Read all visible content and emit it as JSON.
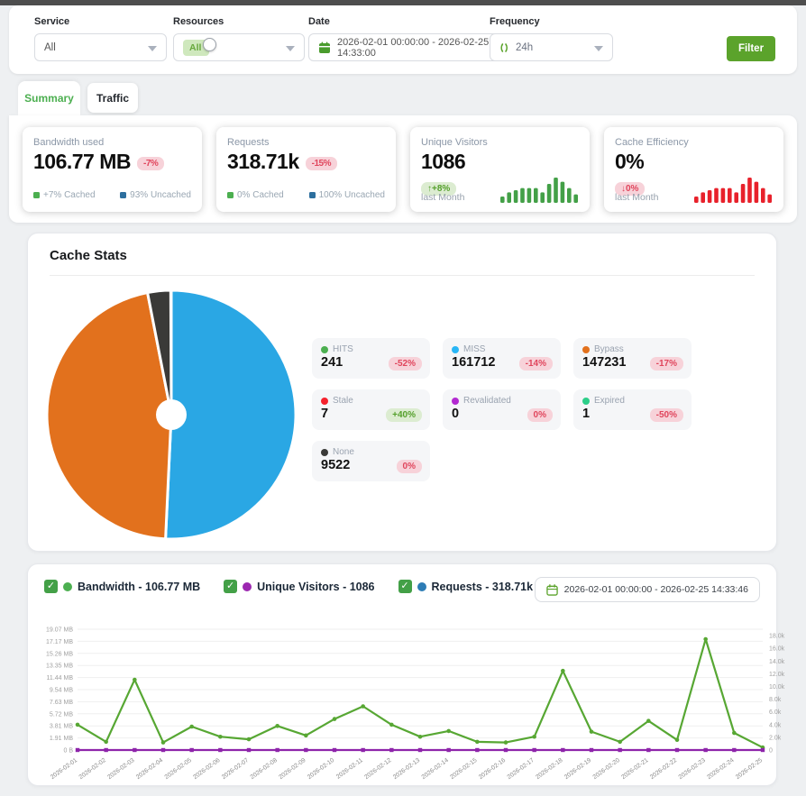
{
  "topbar": {
    "service_label": "Service",
    "service_value": "All",
    "resources_label": "Resources",
    "resources_value": "All",
    "date_label": "Date",
    "date_value": "2026-02-01 00:00:00 - 2026-02-25 14:33:00",
    "frequency_label": "Frequency",
    "frequency_value": "24h",
    "filter_button": "Filter"
  },
  "tabs": {
    "summary": "Summary",
    "traffic": "Traffic"
  },
  "stat_cards": [
    {
      "title": "Bandwidth used",
      "value": "106.77 MB",
      "badge": "-7%",
      "badge_type": "neg",
      "footer": [
        {
          "color": "#4caf50",
          "text": "+7% Cached"
        },
        {
          "color": "#2d6f9e",
          "text": "93% Uncached"
        }
      ]
    },
    {
      "title": "Requests",
      "value": "318.71k",
      "badge": "-15%",
      "badge_type": "neg",
      "footer": [
        {
          "color": "#4caf50",
          "text": "0% Cached"
        },
        {
          "color": "#2d6f9e",
          "text": "100% Uncached"
        }
      ]
    },
    {
      "title": "Unique Visitors",
      "value": "1086",
      "badge": "↑+8%",
      "badge_type": "pos",
      "footer_label": "last Month",
      "spark": "visitors_spark"
    },
    {
      "title": "Cache Efficiency",
      "value": "0%",
      "badge": "↓0%",
      "badge_type": "neg",
      "footer_label": "last Month",
      "spark": "efficiency_spark"
    }
  ],
  "cache_stats": {
    "title": "Cache Stats",
    "tiles": [
      {
        "label": "HITS",
        "color": "#4caf50",
        "value": "241",
        "badge": "-52%",
        "badge_type": "neg"
      },
      {
        "label": "MISS",
        "color": "#29b6f6",
        "value": "161712",
        "badge": "-14%",
        "badge_type": "neg"
      },
      {
        "label": "Bypass",
        "color": "#e2711d",
        "value": "147231",
        "badge": "-17%",
        "badge_type": "neg"
      },
      {
        "label": "Stale",
        "color": "#f5222d",
        "value": "7",
        "badge": "+40%",
        "badge_type": "pos"
      },
      {
        "label": "Revalidated",
        "color": "#b32ad1",
        "value": "0",
        "badge": "0%",
        "badge_type": "neg"
      },
      {
        "label": "Expired",
        "color": "#2dce89",
        "value": "1",
        "badge": "-50%",
        "badge_type": "neg"
      },
      {
        "label": "None",
        "color": "#3a3a38",
        "value": "9522",
        "badge": "0%",
        "badge_type": "neg"
      }
    ]
  },
  "traffic_chart": {
    "legend": [
      {
        "label": "Bandwidth - 106.77 MB",
        "color": "#4caf50",
        "checked": true
      },
      {
        "label": "Unique Visitors - 1086",
        "color": "#9c27b0",
        "checked": true
      },
      {
        "label": "Requests - 318.71k",
        "color": "#2d7cb5",
        "checked": true
      }
    ],
    "date_range": "2026-02-01 00:00:00 - 2026-02-25 14:33:46"
  },
  "chart_data": {
    "cache_pie": {
      "type": "pie",
      "slices": [
        {
          "label": "MISS",
          "value": 161712,
          "color": "#2aa7e4"
        },
        {
          "label": "Bypass",
          "value": 147231,
          "color": "#e2711d"
        },
        {
          "label": "None",
          "value": 9522,
          "color": "#3a3a38"
        },
        {
          "label": "HITS",
          "value": 241,
          "color": "#4caf50"
        },
        {
          "label": "Stale",
          "value": 7,
          "color": "#f5222d"
        },
        {
          "label": "Expired",
          "value": 1,
          "color": "#2dce89"
        },
        {
          "label": "Revalidated",
          "value": 0,
          "color": "#b32ad1"
        }
      ]
    },
    "visitors_spark": {
      "type": "bar",
      "color": "#43a047",
      "values": [
        3,
        5,
        6,
        7,
        7,
        7,
        5,
        9,
        12,
        10,
        7,
        4
      ]
    },
    "efficiency_spark": {
      "type": "bar",
      "color": "#e8212b",
      "values": [
        3,
        5,
        6,
        7,
        7,
        7,
        5,
        9,
        12,
        10,
        7,
        4
      ]
    },
    "main_line": {
      "type": "line",
      "x": [
        "2026-02-01",
        "2026-02-02",
        "2026-02-03",
        "2026-02-04",
        "2026-02-05",
        "2026-02-06",
        "2026-02-07",
        "2026-02-08",
        "2026-02-09",
        "2026-02-10",
        "2026-02-11",
        "2026-02-12",
        "2026-02-13",
        "2026-02-14",
        "2026-02-15",
        "2026-02-16",
        "2026-02-17",
        "2026-02-18",
        "2026-02-19",
        "2026-02-20",
        "2026-02-21",
        "2026-02-22",
        "2026-02-23",
        "2026-02-24",
        "2026-02-25"
      ],
      "series": [
        {
          "name": "Bandwidth (MB)",
          "color": "#57a733",
          "marker": "circle",
          "values": [
            4.0,
            1.3,
            11.1,
            1.2,
            3.7,
            2.1,
            1.7,
            3.8,
            2.3,
            4.9,
            6.9,
            4.0,
            2.1,
            3.0,
            1.3,
            1.2,
            2.1,
            12.5,
            2.9,
            1.3,
            4.6,
            1.6,
            17.5,
            2.7,
            0.4
          ]
        },
        {
          "name": "Unique Visitors",
          "color": "#8e24aa",
          "marker": "square",
          "values": [
            0,
            0,
            0,
            0,
            0,
            0,
            0,
            0,
            0,
            0,
            0,
            0,
            0,
            0,
            0,
            0,
            0,
            0,
            0,
            0,
            0,
            0,
            0,
            0,
            0
          ]
        }
      ],
      "left_ticks": [
        "19.07 MB",
        "17.17 MB",
        "15.26 MB",
        "13.35 MB",
        "11.44 MB",
        "9.54 MB",
        "7.63 MB",
        "5.72 MB",
        "3.81 MB",
        "1.91 MB",
        "0 B"
      ],
      "left_max": 19.07,
      "right_ticks": [
        "18.0k",
        "16.0k",
        "14.0k",
        "12.0k",
        "10.0k",
        "8.0k",
        "6.0k",
        "4.0k",
        "2.0k",
        "0"
      ],
      "right_tick_values": [
        18,
        16,
        14,
        12,
        10,
        8,
        6,
        4,
        2,
        0
      ],
      "right_max": 19.0,
      "grid": true,
      "legend_position": "top-left"
    }
  }
}
